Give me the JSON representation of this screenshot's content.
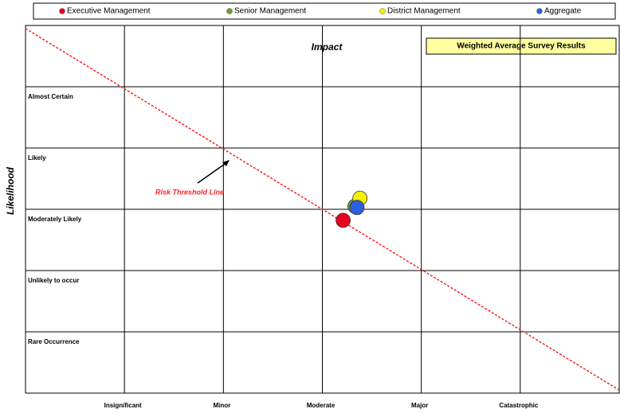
{
  "chart_data": {
    "type": "scatter",
    "title": "Weighted Average Survey Results",
    "xlabel": "Impact",
    "ylabel": "Likelihood",
    "xlim": [
      0,
      6
    ],
    "ylim": [
      0,
      6
    ],
    "xticks": [
      {
        "value": 1,
        "label": "Insignificant"
      },
      {
        "value": 2,
        "label": "Minor"
      },
      {
        "value": 3,
        "label": "Moderate"
      },
      {
        "value": 4,
        "label": "Major"
      },
      {
        "value": 5,
        "label": "Catastrophic"
      }
    ],
    "yticks": [
      {
        "value": 1,
        "label": "Rare Occurrence"
      },
      {
        "value": 2,
        "label": "Unlikely to occur"
      },
      {
        "value": 3,
        "label": "Moderately Likely"
      },
      {
        "value": 4,
        "label": "Likely"
      },
      {
        "value": 5,
        "label": "Almost Certain"
      }
    ],
    "grid": true,
    "legend": "top",
    "series": [
      {
        "name": "Executive Management",
        "color": "#e8001c",
        "x": [
          3.21
        ],
        "y": [
          2.82
        ]
      },
      {
        "name": "Senior Management",
        "color": "#6aa121",
        "x": [
          3.33
        ],
        "y": [
          3.05
        ]
      },
      {
        "name": "District Management",
        "color": "#f5f200",
        "x": [
          3.38
        ],
        "y": [
          3.18
        ]
      },
      {
        "name": "Aggregate",
        "color": "#2e5fe0",
        "x": [
          3.35
        ],
        "y": [
          3.03
        ]
      }
    ],
    "threshold": {
      "name": "Risk Threshold Line",
      "color": "#ff2020",
      "x": [
        0,
        6
      ],
      "y": [
        5.95,
        0.05
      ]
    }
  }
}
